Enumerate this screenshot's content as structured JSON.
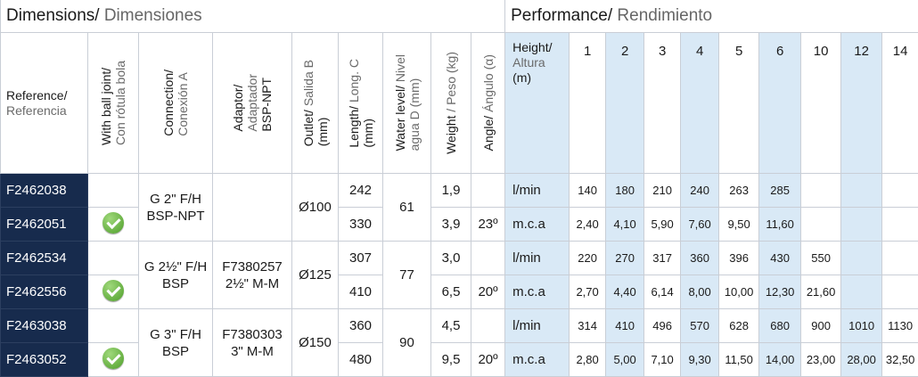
{
  "sections": {
    "dimensions_en": "Dimensions/",
    "dimensions_es": " Dimensiones",
    "performance_en": "Performance/",
    "performance_es": " Rendimiento"
  },
  "headers": {
    "reference_en": "Reference/",
    "reference_es": "Referencia",
    "ball_joint_en": "With ball joint/",
    "ball_joint_es": "Con rótula bola",
    "connection_en": "Connection/",
    "connection_es": "Conexión A",
    "adaptor_l1": "Adaptor/",
    "adaptor_l2": "Adaptador",
    "adaptor_l3": "BSP-NPT",
    "outlet_en": "Outlet/",
    "outlet_es": " Salida B",
    "outlet_unit": "(mm)",
    "length_en": "Length/",
    "length_es": " Long. C",
    "length_unit": "(mm)",
    "water_en": "Water level/",
    "water_es": " Nivel",
    "water_l2": "agua D (mm)",
    "weight_en": "Weight",
    "weight_es": " / Peso (kg)",
    "angle_en": "Angle/",
    "angle_es": " Ángulo (α)",
    "height_en": "Height/",
    "height_es": "Altura",
    "height_unit": "(m)"
  },
  "heights": [
    "1",
    "2",
    "3",
    "4",
    "5",
    "6",
    "10",
    "12",
    "14"
  ],
  "groups": [
    {
      "connection_l1": "G 2\" F/H",
      "connection_l2": "BSP-NPT",
      "adaptor_l1": "",
      "adaptor_l2": "",
      "outlet": "Ø100",
      "water_level": "61"
    },
    {
      "connection_l1": "G 2½\" F/H",
      "connection_l2": "BSP",
      "adaptor_l1": "F7380257",
      "adaptor_l2": "2½\" M-M",
      "outlet": "Ø125",
      "water_level": "77"
    },
    {
      "connection_l1": "G 3\" F/H",
      "connection_l2": "BSP",
      "adaptor_l1": "F7380303",
      "adaptor_l2": "3\" M-M",
      "outlet": "Ø150",
      "water_level": "90"
    }
  ],
  "rows": [
    {
      "ref": "F2462038",
      "length": "242",
      "weight": "1,9",
      "angle": "",
      "unit": "l/min",
      "values": [
        "140",
        "180",
        "210",
        "240",
        "263",
        "285",
        "",
        "",
        ""
      ]
    },
    {
      "ref": "F2462051",
      "length": "330",
      "weight": "3,9",
      "angle": "23º",
      "unit": "m.c.a",
      "values": [
        "2,40",
        "4,10",
        "5,90",
        "7,60",
        "9,50",
        "11,60",
        "",
        "",
        ""
      ]
    },
    {
      "ref": "F2462534",
      "length": "307",
      "weight": "3,0",
      "angle": "",
      "unit": "l/min",
      "values": [
        "220",
        "270",
        "317",
        "360",
        "396",
        "430",
        "550",
        "",
        ""
      ]
    },
    {
      "ref": "F2462556",
      "length": "410",
      "weight": "6,5",
      "angle": "20º",
      "unit": "m.c.a",
      "values": [
        "2,70",
        "4,40",
        "6,14",
        "8,00",
        "10,00",
        "12,30",
        "21,60",
        "",
        ""
      ]
    },
    {
      "ref": "F2463038",
      "length": "360",
      "weight": "4,5",
      "angle": "",
      "unit": "l/min",
      "values": [
        "314",
        "410",
        "496",
        "570",
        "628",
        "680",
        "900",
        "1010",
        "1130"
      ]
    },
    {
      "ref": "F2463052",
      "length": "480",
      "weight": "9,5",
      "angle": "20º",
      "unit": "m.c.a",
      "values": [
        "2,80",
        "5,00",
        "7,10",
        "9,30",
        "11,50",
        "14,00",
        "23,00",
        "28,00",
        "32,50"
      ]
    }
  ],
  "colors": {
    "reference_bg": "#172b4d",
    "highlight": "#d9e9f6",
    "check": "#5aad33"
  },
  "icons": {
    "ball_joint": "check-circle-icon"
  }
}
